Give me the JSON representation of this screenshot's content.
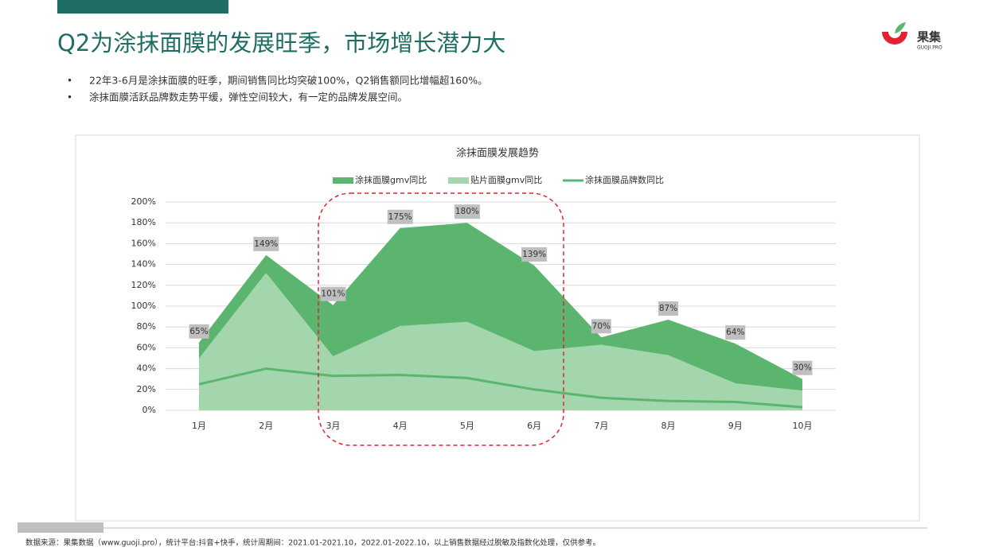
{
  "header": {
    "title": "Q2为涂抹面膜的发展旺季，市场增长潜力大"
  },
  "bullets": [
    "22年3-6月是涂抹面膜的旺季，期间销售同比均突破100%，Q2销售额同比增幅超160%。",
    "涂抹面膜活跃品牌数走势平缓，弹性空间较大，有一定的品牌发展空间。"
  ],
  "logo": {
    "name": "果集",
    "domain": "GUOJI.PRO"
  },
  "chart_data": {
    "type": "area",
    "title": "涂抹面膜发展趋势",
    "categories": [
      "1月",
      "2月",
      "3月",
      "4月",
      "5月",
      "6月",
      "7月",
      "8月",
      "9月",
      "10月"
    ],
    "series": [
      {
        "name": "涂抹面膜gmv同比",
        "kind": "area",
        "color": "#5cb56f",
        "values": [
          65,
          149,
          101,
          175,
          180,
          139,
          70,
          87,
          64,
          30
        ],
        "value_labels": [
          "65%",
          "149%",
          "101%",
          "175%",
          "180%",
          "139%",
          "70%",
          "87%",
          "64%",
          "30%"
        ]
      },
      {
        "name": "贴片面膜gmv同比",
        "kind": "area",
        "color": "#a3d6ad",
        "values": [
          50,
          132,
          52,
          81,
          85,
          57,
          63,
          53,
          26,
          19
        ]
      },
      {
        "name": "涂抹面膜品牌数同比",
        "kind": "line",
        "color": "#5cb56f",
        "values": [
          25,
          40,
          33,
          34,
          31,
          20,
          12,
          9,
          8,
          3
        ]
      }
    ],
    "ylim": [
      0,
      200
    ],
    "yticks": [
      {
        "value": 0,
        "label": "0%"
      },
      {
        "value": 20,
        "label": "20%"
      },
      {
        "value": 40,
        "label": "40%"
      },
      {
        "value": 60,
        "label": "60%"
      },
      {
        "value": 80,
        "label": "80%"
      },
      {
        "value": 100,
        "label": "100%"
      },
      {
        "value": 120,
        "label": "120%"
      },
      {
        "value": 140,
        "label": "140%"
      },
      {
        "value": 160,
        "label": "160%"
      },
      {
        "value": 180,
        "label": "180%"
      },
      {
        "value": 200,
        "label": "200%"
      }
    ],
    "grid": true,
    "legend": "top"
  },
  "footer": {
    "source": "数据来源：果集数据（www.guoji.pro），统计平台:抖音+快手，统计周期间：2021.01-2021.10，2022.01-2022.10，以上销售数据经过脱敏及指数化处理，仅供参考。"
  }
}
